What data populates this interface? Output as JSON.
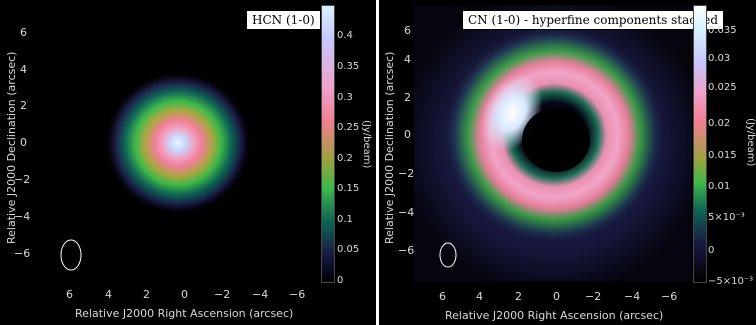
{
  "panels": [
    {
      "title": "HCN (1-0)",
      "x_label": "Relative J2000 Right Ascension (arcsec)",
      "y_label": "Relative J2000 Declination (arcsec)",
      "x_ticks": [
        "6",
        "4",
        "2",
        "0",
        "−2",
        "−4",
        "−6"
      ],
      "y_ticks": [
        "6",
        "4",
        "2",
        "0",
        "−2",
        "−4",
        "−6"
      ],
      "colorbar_ticks": [
        "0.4",
        "0.35",
        "0.3",
        "0.25",
        "0.2",
        "0.15",
        "0.1",
        "0.05",
        "0"
      ],
      "colorbar_label": "(Jy/beam)"
    },
    {
      "title": "CN (1-0) - hyperfine components stacked",
      "x_label": "Relative J2000 Right Ascension (arcsec)",
      "y_label": "Relative J2000 Declination (arcsec)",
      "x_ticks": [
        "6",
        "4",
        "2",
        "0",
        "−2",
        "−4",
        "−6"
      ],
      "y_ticks": [
        "6",
        "4",
        "2",
        "0",
        "−2",
        "−4",
        "−6"
      ],
      "colorbar_ticks": [
        "0.035",
        "0.03",
        "0.025",
        "0.02",
        "0.015",
        "0.01",
        "5×10⁻³",
        "0",
        "−5×10⁻³"
      ],
      "colorbar_label": "(Jy/beam)"
    }
  ],
  "colors": {
    "background": "#000000",
    "text": "#d8d8d8"
  }
}
